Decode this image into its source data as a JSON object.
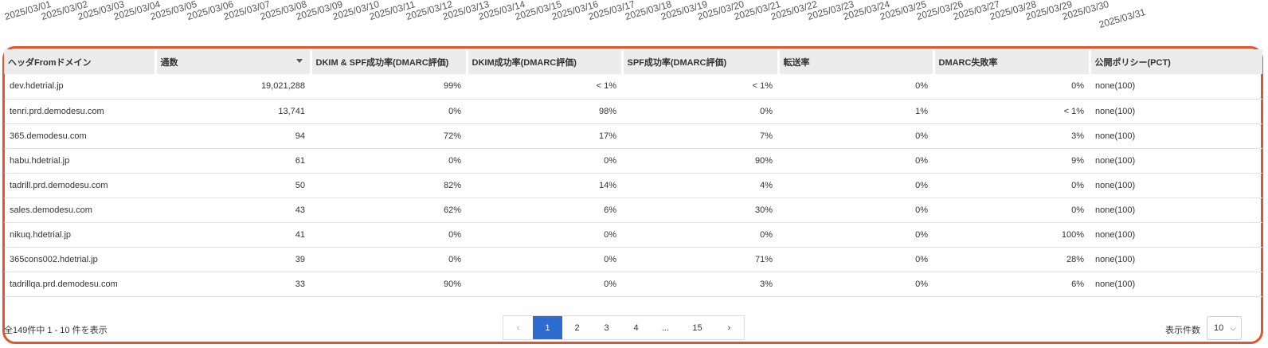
{
  "date_axis": {
    "labels": [
      "2025/03/01",
      "2025/03/02",
      "2025/03/03",
      "2025/03/04",
      "2025/03/05",
      "2025/03/06",
      "2025/03/07",
      "2025/03/08",
      "2025/03/09",
      "2025/03/10",
      "2025/03/11",
      "2025/03/12",
      "2025/03/13",
      "2025/03/14",
      "2025/03/15",
      "2025/03/16",
      "2025/03/17",
      "2025/03/18",
      "2025/03/19",
      "2025/03/20",
      "2025/03/21",
      "2025/03/22",
      "2025/03/23",
      "2025/03/24",
      "2025/03/25",
      "2025/03/26",
      "2025/03/27",
      "2025/03/28",
      "2025/03/29",
      "2025/03/30",
      "2025/03/31"
    ]
  },
  "table": {
    "columns": [
      "ヘッダFromドメイン",
      "通数",
      "DKIM & SPF成功率(DMARC評価)",
      "DKIM成功率(DMARC評価)",
      "SPF成功率(DMARC評価)",
      "転送率",
      "DMARC失敗率",
      "公開ポリシー(PCT)"
    ],
    "sorted_column": "通数",
    "rows": [
      [
        "dev.hdetrial.jp",
        "19,021,288",
        "99%",
        "< 1%",
        "< 1%",
        "0%",
        "0%",
        "none(100)"
      ],
      [
        "tenri.prd.demodesu.com",
        "13,741",
        "0%",
        "98%",
        "0%",
        "1%",
        "< 1%",
        "none(100)"
      ],
      [
        "365.demodesu.com",
        "94",
        "72%",
        "17%",
        "7%",
        "0%",
        "3%",
        "none(100)"
      ],
      [
        "habu.hdetrial.jp",
        "61",
        "0%",
        "0%",
        "90%",
        "0%",
        "9%",
        "none(100)"
      ],
      [
        "tadrill.prd.demodesu.com",
        "50",
        "82%",
        "14%",
        "4%",
        "0%",
        "0%",
        "none(100)"
      ],
      [
        "sales.demodesu.com",
        "43",
        "62%",
        "6%",
        "30%",
        "0%",
        "0%",
        "none(100)"
      ],
      [
        "nikuq.hdetrial.jp",
        "41",
        "0%",
        "0%",
        "0%",
        "0%",
        "100%",
        "none(100)"
      ],
      [
        "365cons002.hdetrial.jp",
        "39",
        "0%",
        "0%",
        "71%",
        "0%",
        "28%",
        "none(100)"
      ],
      [
        "tadrillqa.prd.demodesu.com",
        "33",
        "90%",
        "0%",
        "3%",
        "0%",
        "6%",
        "none(100)"
      ]
    ]
  },
  "footer": {
    "summary": "全149件中 1 - 10 件を表示",
    "pagination": {
      "prev": "‹",
      "pages": [
        "1",
        "2",
        "3",
        "4",
        "...",
        "15"
      ],
      "active": "1",
      "next": "›"
    },
    "per_page_label": "表示件数",
    "per_page_value": "10",
    "per_page_chevron": "⌵"
  },
  "colors": {
    "frame": "#e5532d",
    "active_page": "#2f6ccf",
    "header_bg": "#ececec"
  }
}
